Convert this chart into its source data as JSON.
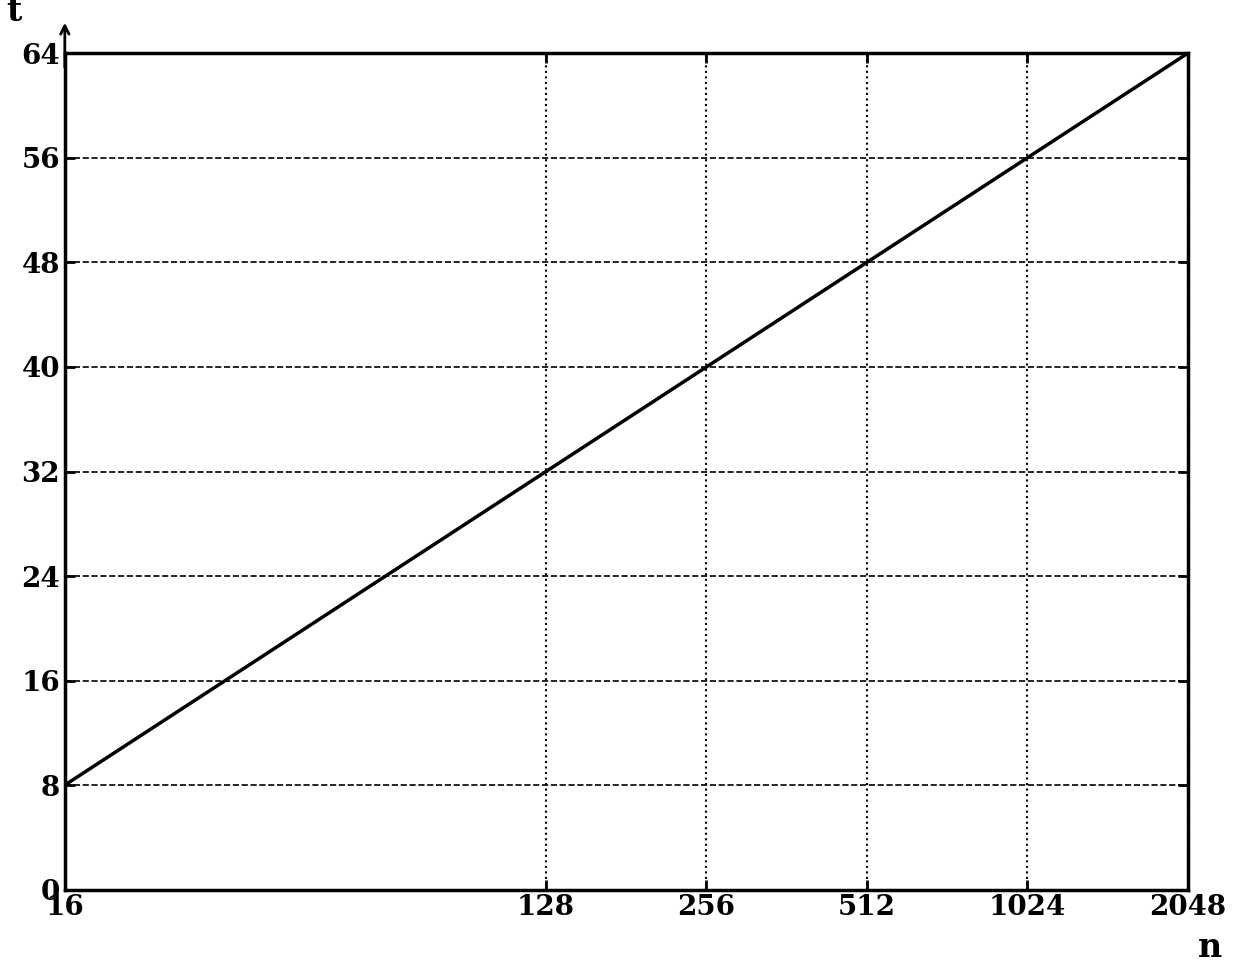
{
  "title": "",
  "xlabel": "n",
  "ylabel": "t",
  "xmin": 16,
  "xmax": 2048,
  "ymin": 0,
  "ymax": 64,
  "yticks": [
    0,
    8,
    16,
    24,
    32,
    40,
    48,
    56,
    64
  ],
  "xticks": [
    16,
    128,
    256,
    512,
    1024,
    2048
  ],
  "xtick_labels": [
    "16",
    "128",
    "256",
    "512",
    "1024",
    "2048"
  ],
  "curve_color": "#000000",
  "curve_linewidth": 2.5,
  "grid_color": "#000000",
  "background_color": "#ffffff",
  "formula_scale": 8.0,
  "formula_shift": 3.0,
  "font_size_ticks": 20,
  "font_size_label": 24
}
